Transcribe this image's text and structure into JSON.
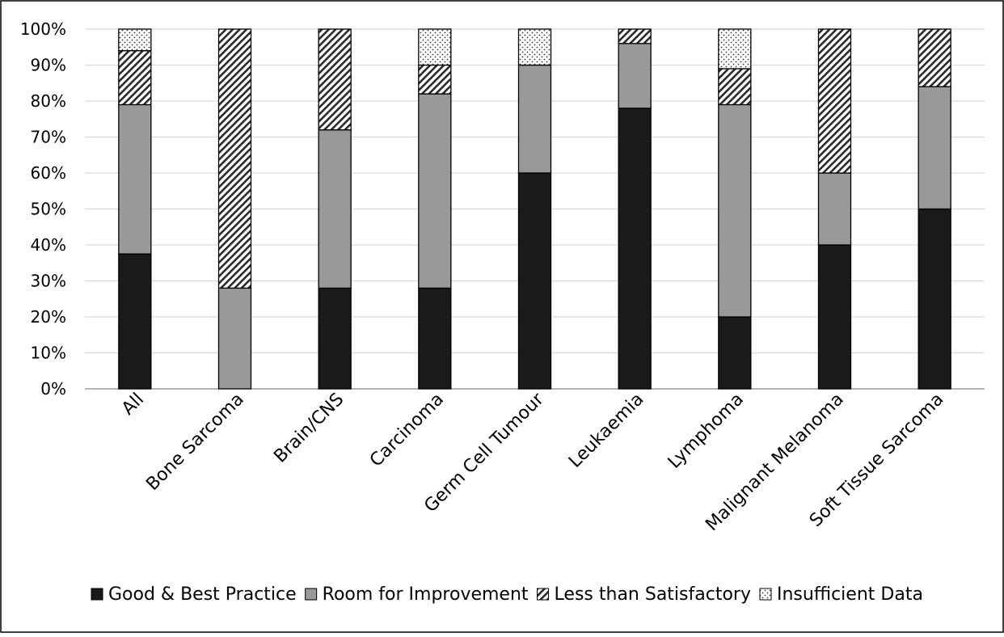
{
  "chart_data": {
    "type": "bar",
    "stacked": true,
    "title": "",
    "xlabel": "",
    "ylabel": "",
    "ylim": [
      0,
      1
    ],
    "y_ticks": [
      "0%",
      "10%",
      "20%",
      "30%",
      "40%",
      "50%",
      "60%",
      "70%",
      "80%",
      "90%",
      "100%"
    ],
    "grid": true,
    "legend_position": "bottom",
    "categories": [
      "All",
      "Bone Sarcoma",
      "Brain/CNS",
      "Carcinoma",
      "Germ Cell Tumour",
      "Leukaemia",
      "Lymphoma",
      "Malignant Melanoma",
      "Soft Tissue Sarcoma"
    ],
    "series": [
      {
        "name": "Good & Best Practice",
        "fill": "solid",
        "color": "#1a1a1a",
        "values": [
          0.375,
          0.0,
          0.28,
          0.28,
          0.6,
          0.78,
          0.2,
          0.4,
          0.5
        ]
      },
      {
        "name": "Room for Improvement",
        "fill": "solid",
        "color": "#999999",
        "values": [
          0.415,
          0.28,
          0.44,
          0.54,
          0.3,
          0.18,
          0.59,
          0.2,
          0.34
        ]
      },
      {
        "name": "Less than Satisfactory",
        "fill": "diagonal-hatch",
        "color": "#000000",
        "values": [
          0.15,
          0.72,
          0.28,
          0.08,
          0.0,
          0.04,
          0.1,
          0.4,
          0.16
        ]
      },
      {
        "name": "Insufficient Data",
        "fill": "dots",
        "color": "#000000",
        "values": [
          0.06,
          0.0,
          0.0,
          0.1,
          0.1,
          0.0,
          0.11,
          0.0,
          0.0
        ]
      }
    ]
  }
}
